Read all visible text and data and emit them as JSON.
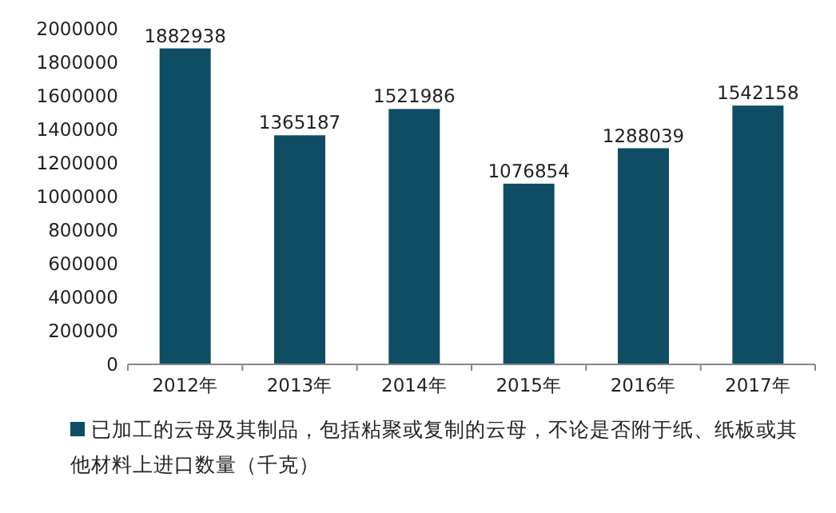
{
  "chart_data": {
    "type": "bar",
    "categories": [
      "2012年",
      "2013年",
      "2014年",
      "2015年",
      "2016年",
      "2017年"
    ],
    "series": [
      {
        "name": "已加工的云母及其制品，包括粘聚或复制的云母，不论是否附于纸、纸板或其他材料上进口数量（千克）",
        "color": "#0e4d64",
        "values": [
          1882938,
          1365187,
          1521986,
          1076854,
          1288039,
          1542158
        ]
      }
    ],
    "ylim": [
      0,
      2000000
    ],
    "yticks": [
      0,
      200000,
      400000,
      600000,
      800000,
      1000000,
      1200000,
      1400000,
      1600000,
      1800000,
      2000000
    ],
    "data_labels": true,
    "legend": "bottom"
  }
}
